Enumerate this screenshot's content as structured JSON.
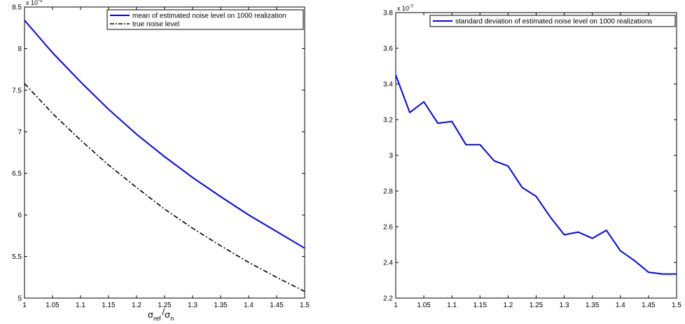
{
  "chart_data": [
    {
      "type": "line",
      "title": "",
      "xlabel": "σ_ref / σ_n",
      "xlabel_parts": {
        "sigma1": "σ",
        "sub1": "ref",
        "slash": "/",
        "sigma2": "σ",
        "sub2": "n"
      },
      "ylabel": "",
      "y_multiplier": {
        "base": "x 10",
        "exponent": "-5"
      },
      "xlim": [
        1,
        1.5
      ],
      "ylim": [
        5,
        8.5
      ],
      "x_ticks": [
        1,
        1.05,
        1.1,
        1.15,
        1.2,
        1.25,
        1.3,
        1.35,
        1.4,
        1.45,
        1.5
      ],
      "x_tick_labels": [
        "1",
        "1.05",
        "1.1",
        "1.15",
        "1.2",
        "1.25",
        "1.3",
        "1.35",
        "1.4",
        "1.45",
        "1.5"
      ],
      "y_ticks": [
        5,
        5.5,
        6,
        6.5,
        7,
        7.5,
        8,
        8.5
      ],
      "y_tick_labels": [
        "5",
        "5.5",
        "6",
        "6.5",
        "7",
        "7.5",
        "8",
        "8.5"
      ],
      "grid": false,
      "legend_position": "top-right",
      "series": [
        {
          "name": "mean of estimated noise level on 1000 realization",
          "color": "#0000ff",
          "style": "solid",
          "x": [
            1,
            1.05,
            1.1,
            1.15,
            1.2,
            1.25,
            1.3,
            1.35,
            1.4,
            1.45,
            1.5
          ],
          "y": [
            8.34,
            7.95,
            7.6,
            7.27,
            6.97,
            6.7,
            6.45,
            6.22,
            6.0,
            5.8,
            5.6
          ]
        },
        {
          "name": "true noise level",
          "color": "#000000",
          "style": "dashdot",
          "x": [
            1,
            1.05,
            1.1,
            1.15,
            1.2,
            1.25,
            1.3,
            1.35,
            1.4,
            1.45,
            1.5
          ],
          "y": [
            7.58,
            7.22,
            6.9,
            6.6,
            6.33,
            6.07,
            5.84,
            5.63,
            5.43,
            5.25,
            5.08
          ]
        }
      ]
    },
    {
      "type": "line",
      "title": "",
      "xlabel": "",
      "ylabel": "",
      "y_multiplier": {
        "base": "x 10",
        "exponent": "-7"
      },
      "xlim": [
        1,
        1.5
      ],
      "ylim": [
        2.2,
        3.8
      ],
      "x_ticks": [
        1,
        1.05,
        1.1,
        1.15,
        1.2,
        1.25,
        1.3,
        1.35,
        1.4,
        1.45,
        1.5
      ],
      "x_tick_labels": [
        "1",
        "1.05",
        "1.1",
        "1.15",
        "1.2",
        "1.25",
        "1.3",
        "1.35",
        "1.4",
        "1.45",
        "1.5"
      ],
      "y_ticks": [
        2.2,
        2.4,
        2.6,
        2.8,
        3.0,
        3.2,
        3.4,
        3.6,
        3.8
      ],
      "y_tick_labels": [
        "2.2",
        "2.4",
        "2.6",
        "2.8",
        "3",
        "3.2",
        "3.4",
        "3.6",
        "3.8"
      ],
      "grid": false,
      "legend_position": "top-right",
      "series": [
        {
          "name": "standard deviation of estimated noise level on 1000 realizations",
          "color": "#0000ff",
          "style": "solid",
          "x": [
            1,
            1.025,
            1.05,
            1.075,
            1.1,
            1.125,
            1.15,
            1.175,
            1.2,
            1.225,
            1.25,
            1.275,
            1.3,
            1.325,
            1.35,
            1.375,
            1.4,
            1.425,
            1.45,
            1.475,
            1.5
          ],
          "y": [
            3.45,
            3.24,
            3.3,
            3.18,
            3.19,
            3.06,
            3.06,
            2.97,
            2.94,
            2.82,
            2.77,
            2.655,
            2.555,
            2.57,
            2.535,
            2.58,
            2.465,
            2.41,
            2.345,
            2.335,
            2.335
          ]
        }
      ]
    }
  ]
}
